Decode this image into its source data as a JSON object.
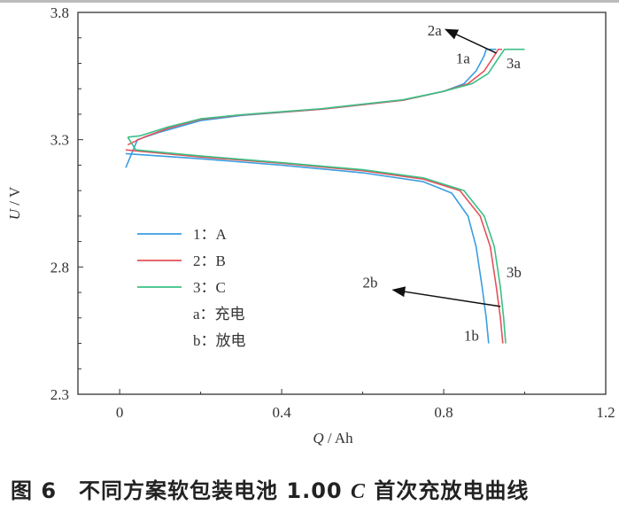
{
  "chart_data": {
    "type": "line",
    "xlabel_italic": "Q",
    "xlabel_unit": " / Ah",
    "ylabel_italic": "U",
    "ylabel_unit": " / V",
    "xlim": [
      -0.103,
      1.2
    ],
    "ylim": [
      2.3,
      3.8
    ],
    "xticks": [
      0,
      0.4,
      0.8,
      1.2
    ],
    "xtick_labels": [
      "0",
      "0.4",
      "0.8",
      "1.2"
    ],
    "yticks": [
      2.3,
      2.8,
      3.3,
      3.8
    ],
    "ytick_labels": [
      "2.3",
      "2.8",
      "3.3",
      "3.8"
    ],
    "grid": false,
    "series": [
      {
        "name": "1：A",
        "color": "#3a9ee0",
        "charge": [
          [
            0.015,
            3.19
          ],
          [
            0.044,
            3.3
          ],
          [
            0.1,
            3.33
          ],
          [
            0.2,
            3.375
          ],
          [
            0.3,
            3.395
          ],
          [
            0.5,
            3.42
          ],
          [
            0.7,
            3.455
          ],
          [
            0.8,
            3.49
          ],
          [
            0.85,
            3.52
          ],
          [
            0.88,
            3.57
          ],
          [
            0.9,
            3.63
          ],
          [
            0.905,
            3.655
          ],
          [
            0.93,
            3.655
          ]
        ],
        "discharge": [
          [
            0.015,
            3.245
          ],
          [
            0.2,
            3.225
          ],
          [
            0.4,
            3.2
          ],
          [
            0.6,
            3.17
          ],
          [
            0.75,
            3.135
          ],
          [
            0.82,
            3.09
          ],
          [
            0.86,
            3.0
          ],
          [
            0.88,
            2.88
          ],
          [
            0.895,
            2.72
          ],
          [
            0.905,
            2.6
          ],
          [
            0.911,
            2.5
          ]
        ]
      },
      {
        "name": "2：B",
        "color": "#e8505a",
        "charge": [
          [
            0.02,
            3.28
          ],
          [
            0.06,
            3.31
          ],
          [
            0.12,
            3.345
          ],
          [
            0.2,
            3.38
          ],
          [
            0.3,
            3.397
          ],
          [
            0.5,
            3.42
          ],
          [
            0.7,
            3.455
          ],
          [
            0.8,
            3.49
          ],
          [
            0.86,
            3.52
          ],
          [
            0.9,
            3.57
          ],
          [
            0.925,
            3.63
          ],
          [
            0.935,
            3.655
          ],
          [
            0.944,
            3.655
          ]
        ],
        "discharge": [
          [
            0.015,
            3.26
          ],
          [
            0.2,
            3.232
          ],
          [
            0.4,
            3.207
          ],
          [
            0.6,
            3.178
          ],
          [
            0.75,
            3.145
          ],
          [
            0.84,
            3.1
          ],
          [
            0.89,
            3.0
          ],
          [
            0.915,
            2.88
          ],
          [
            0.93,
            2.72
          ],
          [
            0.94,
            2.6
          ],
          [
            0.946,
            2.5
          ]
        ]
      },
      {
        "name": "3：C",
        "color": "#3cbf86",
        "charge": [
          [
            0.02,
            3.31
          ],
          [
            0.05,
            3.315
          ],
          [
            0.12,
            3.35
          ],
          [
            0.2,
            3.382
          ],
          [
            0.3,
            3.398
          ],
          [
            0.5,
            3.422
          ],
          [
            0.7,
            3.457
          ],
          [
            0.8,
            3.49
          ],
          [
            0.87,
            3.52
          ],
          [
            0.91,
            3.56
          ],
          [
            0.935,
            3.62
          ],
          [
            0.95,
            3.655
          ],
          [
            1.0,
            3.655
          ]
        ],
        "discharge": [
          [
            0.02,
            3.31
          ],
          [
            0.04,
            3.26
          ],
          [
            0.2,
            3.236
          ],
          [
            0.4,
            3.21
          ],
          [
            0.6,
            3.182
          ],
          [
            0.75,
            3.15
          ],
          [
            0.85,
            3.1
          ],
          [
            0.9,
            3.0
          ],
          [
            0.925,
            2.88
          ],
          [
            0.94,
            2.72
          ],
          [
            0.948,
            2.6
          ],
          [
            0.953,
            2.5
          ]
        ]
      }
    ],
    "legend": [
      "1：A",
      "2：B",
      "3：C",
      "a：充电",
      "b：放电"
    ],
    "legend_position": "left-center",
    "annotations": [
      {
        "text": "2a",
        "x": 0.76,
        "y": 3.71
      },
      {
        "text": "1a",
        "x": 0.83,
        "y": 3.6
      },
      {
        "text": "3a",
        "x": 0.955,
        "y": 3.58
      },
      {
        "text": "2b",
        "x": 0.6,
        "y": 2.72
      },
      {
        "text": "1b",
        "x": 0.85,
        "y": 2.51
      },
      {
        "text": "3b",
        "x": 0.955,
        "y": 2.76
      }
    ],
    "arrows": [
      {
        "from": [
          0.93,
          3.64
        ],
        "to": [
          0.805,
          3.733
        ]
      },
      {
        "from": [
          0.94,
          2.645
        ],
        "to": [
          0.675,
          2.71
        ]
      }
    ]
  },
  "caption": {
    "prefix": "图 6　不同方案软包装电池 1.00 ",
    "italic": "C",
    "suffix": " 首次充放电曲线"
  }
}
